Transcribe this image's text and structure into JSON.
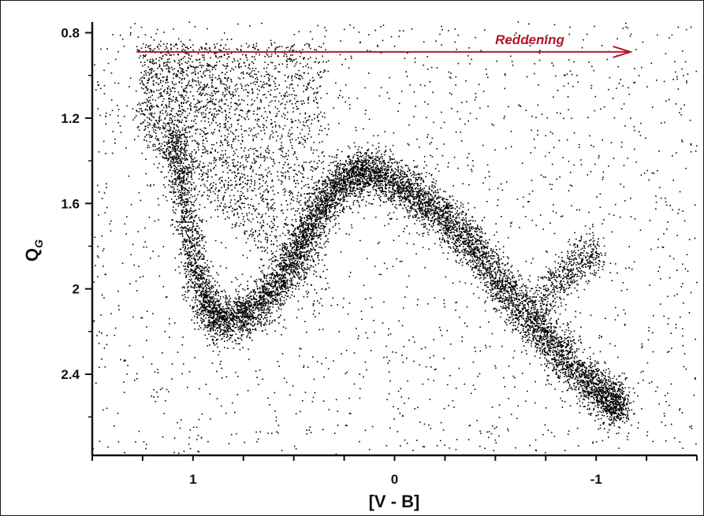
{
  "chart_data": {
    "type": "scatter",
    "title": "",
    "xlabel": "[V - B]",
    "ylabel_main": "Q",
    "ylabel_sub": "G",
    "xlim": [
      1.5,
      -1.5
    ],
    "ylim": [
      0.75,
      2.78
    ],
    "y_inverted": true,
    "x_reversed": true,
    "x_ticks": [
      1,
      0,
      -1
    ],
    "x_tick_labels": [
      "1",
      "0",
      "-1"
    ],
    "x_minor_ticks": [
      1.5,
      1.25,
      1.0,
      0.75,
      0.5,
      0.25,
      0.0,
      -0.25,
      -0.5,
      -0.75,
      -1.0,
      -1.25,
      -1.5
    ],
    "y_ticks": [
      0.8,
      1.2,
      1.6,
      2.0,
      2.4
    ],
    "y_tick_labels": [
      "0.8",
      "1.2",
      "1.6",
      "2",
      "2.4"
    ],
    "y_minor_ticks": [
      1.0,
      1.4,
      1.8,
      2.2,
      2.6
    ],
    "grid": false,
    "point_color": "#000000",
    "annotation": {
      "text": "Reddening",
      "color": "#b2182b",
      "arrow_from": [
        1.28,
        0.89
      ],
      "arrow_to": [
        -1.17,
        0.89
      ]
    },
    "series": [
      {
        "density_ridges": [
          {
            "x": [
              1.1,
              1.05,
              1.0,
              0.95,
              0.88,
              0.78,
              0.68,
              0.58,
              0.5,
              0.42,
              0.34,
              0.26,
              0.18,
              0.1,
              0.0,
              -0.1,
              -0.2,
              -0.3,
              -0.4,
              -0.5,
              -0.6,
              -0.7,
              -0.8,
              -0.9,
              -1.0,
              -1.08,
              -1.12
            ],
            "y": [
              1.25,
              1.55,
              1.85,
              2.05,
              2.15,
              2.14,
              2.08,
              1.98,
              1.87,
              1.72,
              1.58,
              1.5,
              1.46,
              1.46,
              1.5,
              1.56,
              1.63,
              1.71,
              1.82,
              1.95,
              2.06,
              2.17,
              2.28,
              2.38,
              2.47,
              2.53,
              2.55
            ]
          },
          {
            "x": [
              -0.72,
              -0.82,
              -0.92,
              -1.0
            ],
            "y": [
              2.06,
              1.96,
              1.88,
              1.82
            ]
          }
        ]
      }
    ]
  }
}
